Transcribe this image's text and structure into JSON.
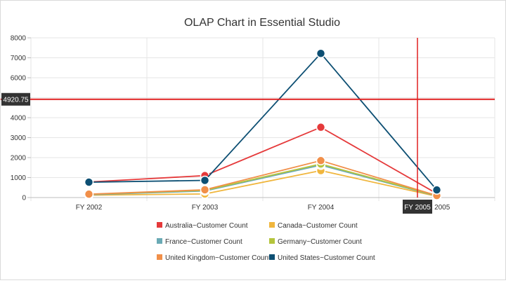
{
  "chart_data": {
    "type": "line",
    "title": "OLAP Chart in Essential Studio",
    "xlabel": "",
    "ylabel": "",
    "categories": [
      "FY 2002",
      "FY 2003",
      "FY 2004",
      "FY 2005"
    ],
    "ylim": [
      0,
      8000
    ],
    "yticks": [
      0,
      1000,
      2000,
      3000,
      4000,
      5000,
      6000,
      7000,
      8000
    ],
    "grid": true,
    "legend": "bottom",
    "series": [
      {
        "name": "Australia~Customer Count",
        "color": "#e5393a",
        "values": [
          780,
          1100,
          3520,
          200
        ]
      },
      {
        "name": "Canada~Customer Count",
        "color": "#f0b63d",
        "values": [
          120,
          180,
          1350,
          60
        ]
      },
      {
        "name": "France~Customer Count",
        "color": "#6aaab5",
        "values": [
          140,
          330,
          1620,
          80
        ]
      },
      {
        "name": "Germany~Customer Count",
        "color": "#b4c43c",
        "values": [
          160,
          360,
          1680,
          90
        ]
      },
      {
        "name": "United Kingdom~Customer Count",
        "color": "#f18f49",
        "values": [
          170,
          390,
          1850,
          100
        ]
      },
      {
        "name": "United States~Customer Count",
        "color": "#0d4f73",
        "values": [
          770,
          860,
          7220,
          380
        ]
      }
    ],
    "crosshair": {
      "y_value": "4920.75",
      "x_label": "FY 2005",
      "color": "#e02020"
    }
  }
}
